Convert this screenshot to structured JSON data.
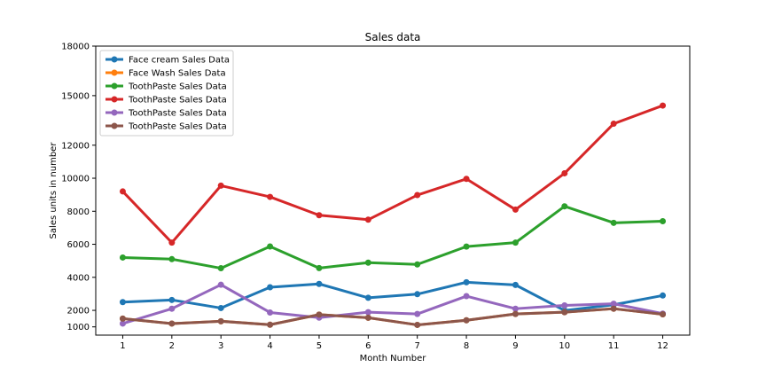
{
  "chart_data": {
    "type": "line",
    "title": "Sales data",
    "xlabel": "Month Number",
    "ylabel": "Sales units in number",
    "x": [
      1,
      2,
      3,
      4,
      5,
      6,
      7,
      8,
      9,
      10,
      11,
      12
    ],
    "xticks": [
      "1",
      "2",
      "3",
      "4",
      "5",
      "6",
      "7",
      "8",
      "9",
      "10",
      "11",
      "12"
    ],
    "yticks": [
      1000,
      2000,
      4000,
      6000,
      8000,
      10000,
      12000,
      15000,
      18000
    ],
    "ytick_labels": [
      "1000",
      "2000",
      "4000",
      "6000",
      "8000",
      "10000",
      "12000",
      "15000",
      "18000"
    ],
    "ylim": [
      500,
      18000
    ],
    "xlim": [
      0.45,
      12.55
    ],
    "grid": false,
    "legend_position": "top-left",
    "series": [
      {
        "name": "Face cream Sales Data",
        "color": "#1f77b4",
        "values": [
          2500,
          2630,
          2140,
          3400,
          3600,
          2760,
          2980,
          3700,
          3540,
          1990,
          2340,
          2900
        ]
      },
      {
        "name": "Face Wash Sales Data",
        "color": "#ff7f0e",
        "values": [
          1500,
          1200,
          1340,
          1130,
          1740,
          1555,
          1120,
          1400,
          1780,
          1890,
          2100,
          1760
        ]
      },
      {
        "name": "ToothPaste Sales Data",
        "color": "#2ca02c",
        "values": [
          5200,
          5100,
          4550,
          5870,
          4560,
          4890,
          4780,
          5860,
          6100,
          8300,
          7300,
          7400
        ]
      },
      {
        "name": "ToothPaste Sales Data",
        "color": "#d62728",
        "values": [
          9200,
          6100,
          9550,
          8870,
          7760,
          7490,
          8980,
          9960,
          8100,
          10300,
          13300,
          14400
        ]
      },
      {
        "name": "ToothPaste Sales Data",
        "color": "#9467bd",
        "values": [
          1200,
          2100,
          3550,
          1870,
          1560,
          1890,
          1780,
          2860,
          2100,
          2300,
          2400,
          1800
        ]
      },
      {
        "name": "ToothPaste Sales Data",
        "color": "#8c564b",
        "values": [
          1500,
          1200,
          1340,
          1130,
          1740,
          1555,
          1120,
          1400,
          1780,
          1890,
          2100,
          1760
        ]
      }
    ]
  }
}
